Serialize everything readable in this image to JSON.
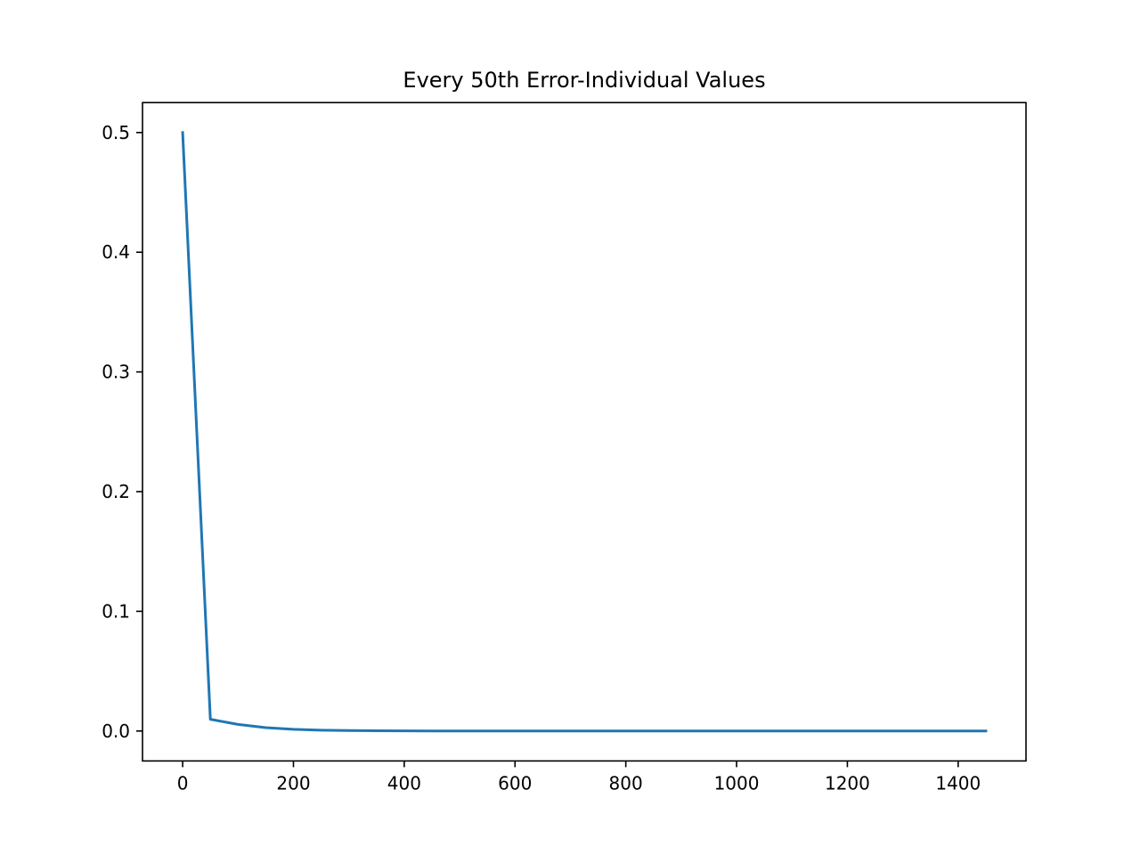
{
  "chart_data": {
    "type": "line",
    "title": "Every 50th Error-Individual Values",
    "xlabel": "",
    "ylabel": "",
    "xlim": [
      -72.5,
      1522.5
    ],
    "ylim": [
      -0.025,
      0.525
    ],
    "xticks": [
      0,
      200,
      400,
      600,
      800,
      1000,
      1200,
      1400
    ],
    "xtick_labels": [
      "0",
      "200",
      "400",
      "600",
      "800",
      "1000",
      "1200",
      "1400"
    ],
    "yticks": [
      0.0,
      0.1,
      0.2,
      0.3,
      0.4,
      0.5
    ],
    "ytick_labels": [
      "0.0",
      "0.1",
      "0.2",
      "0.3",
      "0.4",
      "0.5"
    ],
    "grid": false,
    "series": [
      {
        "color": "#1f77b4",
        "x": [
          0,
          50,
          100,
          150,
          200,
          250,
          300,
          350,
          400,
          450,
          500,
          550,
          600,
          650,
          700,
          750,
          800,
          850,
          900,
          950,
          1000,
          1050,
          1100,
          1150,
          1200,
          1250,
          1300,
          1350,
          1400,
          1450
        ],
        "y": [
          0.5,
          0.0098,
          0.0055,
          0.0028,
          0.0014,
          0.0007,
          0.0004,
          0.0002,
          0.0001,
          5e-05,
          3e-05,
          1e-05,
          1e-05,
          0.0,
          0.0,
          0.0,
          0.0,
          0.0,
          0.0,
          0.0,
          0.0,
          0.0,
          0.0,
          0.0,
          0.0,
          0.0,
          0.0,
          0.0,
          0.0,
          0.0
        ]
      }
    ]
  }
}
